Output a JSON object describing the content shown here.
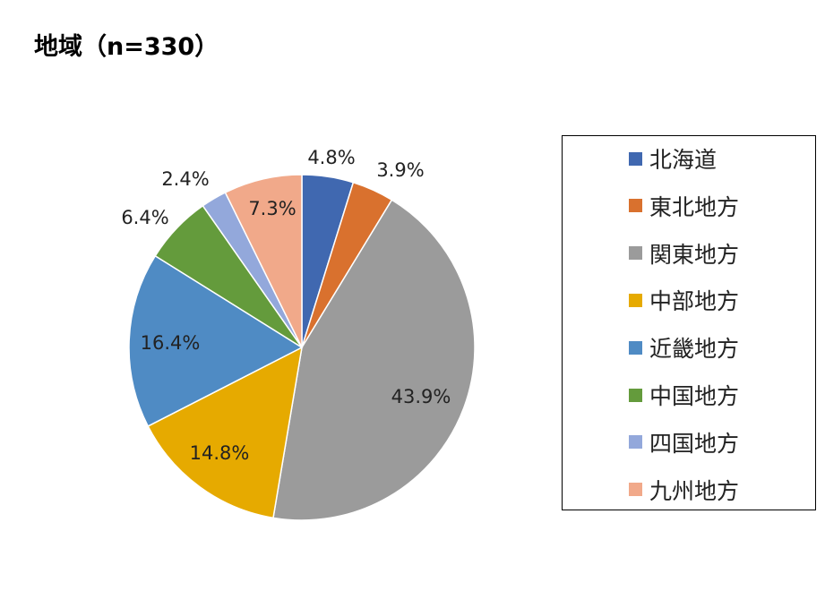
{
  "chart_data": {
    "type": "pie",
    "title": "地域（n=330）",
    "categories": [
      "北海道",
      "東北地方",
      "関東地方",
      "中部地方",
      "近畿地方",
      "中国地方",
      "四国地方",
      "九州地方"
    ],
    "values": [
      4.8,
      3.9,
      43.9,
      14.8,
      16.4,
      6.4,
      2.4,
      7.3
    ],
    "value_labels": [
      "4.8%",
      "3.9%",
      "43.9%",
      "14.8%",
      "16.4%",
      "6.4%",
      "2.4%",
      "7.3%"
    ],
    "colors": [
      "#4068B0",
      "#D9712E",
      "#9B9B9B",
      "#E6AA00",
      "#4F8BC4",
      "#649B3C",
      "#93A8DB",
      "#F1A98A"
    ],
    "legend_position": "right",
    "start_angle": "12 o'clock, clockwise"
  }
}
